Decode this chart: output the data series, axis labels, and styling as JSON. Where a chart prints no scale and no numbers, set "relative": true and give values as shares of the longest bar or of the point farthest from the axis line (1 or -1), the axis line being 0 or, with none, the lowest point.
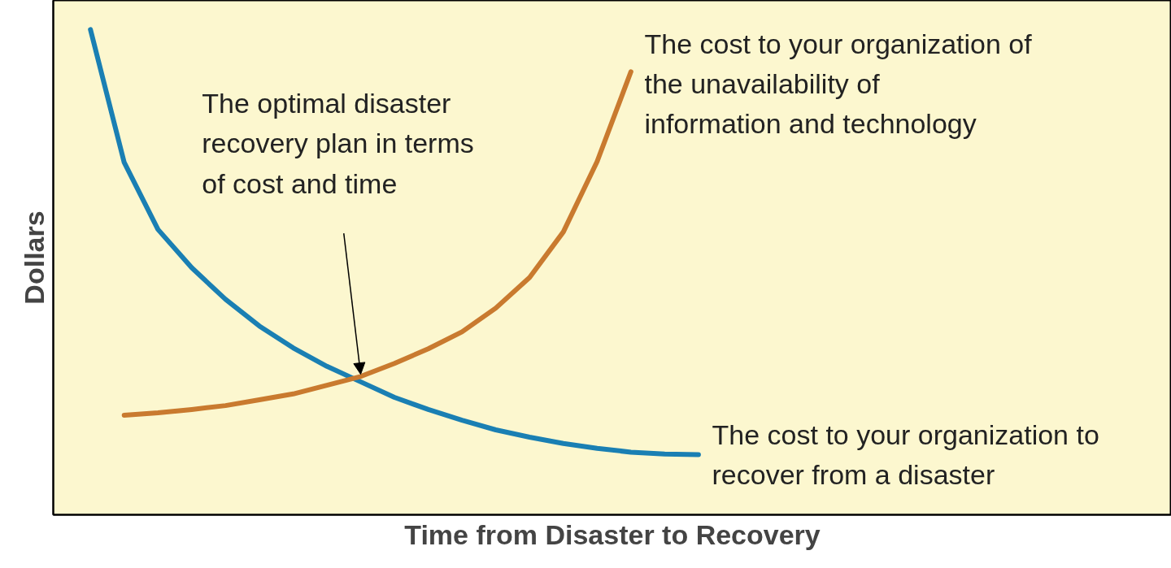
{
  "chart_data": {
    "type": "line",
    "relative": true,
    "xlabel": "Time from Disaster to Recovery",
    "ylabel": "Dollars",
    "tick_labels": false,
    "categories": [
      null,
      null,
      null,
      null,
      null,
      null,
      null,
      null,
      null,
      null,
      null,
      null,
      null,
      null,
      null,
      null,
      null,
      null,
      null
    ],
    "series": [
      {
        "name": "The cost to your organization to recover from a disaster",
        "color": "#1a7fb3",
        "values": [
          1.0,
          0.726,
          0.588,
          0.509,
          0.444,
          0.389,
          0.344,
          0.306,
          0.274,
          0.242,
          0.217,
          0.195,
          0.175,
          0.16,
          0.147,
          0.137,
          0.129,
          0.125,
          0.124
        ]
      },
      {
        "name": "The cost to your organization of the unavailability of information and technology",
        "color": "#c97a2f",
        "values": [
          null,
          0.205,
          0.21,
          0.217,
          0.225,
          0.237,
          0.249,
          0.267,
          0.285,
          0.312,
          0.342,
          0.377,
          0.426,
          0.489,
          0.583,
          0.728,
          0.913,
          null,
          null
        ]
      }
    ],
    "annotations": [
      "The optimal disaster recovery plan in terms of cost and time"
    ]
  }
}
